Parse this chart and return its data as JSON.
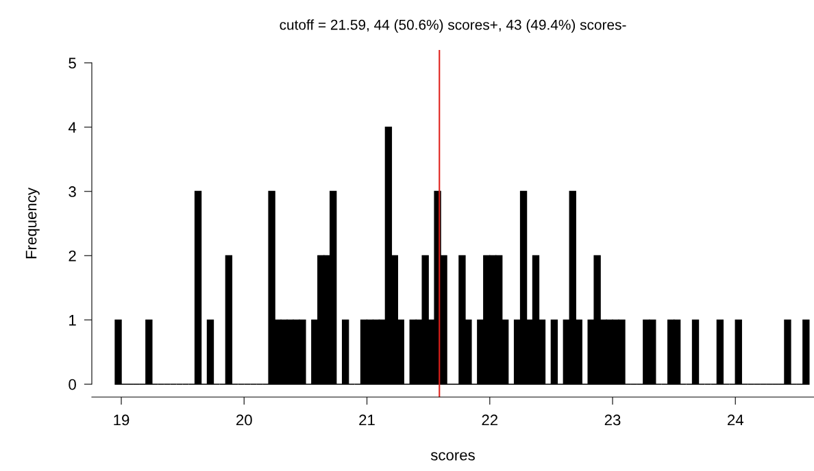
{
  "chart_data": {
    "type": "histogram",
    "title": "cutoff = 21.59, 44 (50.6%) scores+, 43 (49.4%) scores-",
    "xlabel": "scores",
    "ylabel": "Frequency",
    "bins": [
      18.95,
      19.0,
      19.05,
      19.1,
      19.15,
      19.2,
      19.25,
      19.3,
      19.35,
      19.4,
      19.45,
      19.5,
      19.55,
      19.6,
      19.65,
      19.7,
      19.75,
      19.8,
      19.85,
      19.9,
      19.95,
      20.0,
      20.05,
      20.1,
      20.15,
      20.2,
      20.25,
      20.3,
      20.35,
      20.4,
      20.45,
      20.5,
      20.55,
      20.6,
      20.65,
      20.7,
      20.75,
      20.8,
      20.85,
      20.9,
      20.95,
      21.0,
      21.05,
      21.1,
      21.15,
      21.2,
      21.25,
      21.3,
      21.35,
      21.4,
      21.45,
      21.5,
      21.55,
      21.6,
      21.65,
      21.7,
      21.75,
      21.8,
      21.85,
      21.9,
      21.95,
      22.0,
      22.05,
      22.1,
      22.15,
      22.2,
      22.25,
      22.3,
      22.35,
      22.4,
      22.45,
      22.5,
      22.55,
      22.6,
      22.65,
      22.7,
      22.75,
      22.8,
      22.85,
      22.9,
      22.95,
      23.0,
      23.05,
      23.1,
      23.15,
      23.2,
      23.25,
      23.3,
      23.35,
      23.4,
      23.45,
      23.5,
      23.55,
      23.6,
      23.65,
      23.7,
      23.75,
      23.8,
      23.85,
      23.9,
      23.95,
      24.0,
      24.05,
      24.1,
      24.15,
      24.2,
      24.25,
      24.3,
      24.35,
      24.4,
      24.45,
      24.5,
      24.55,
      24.6
    ],
    "values": [
      1,
      0,
      0,
      0,
      0,
      1,
      0,
      0,
      0,
      0,
      0,
      0,
      0,
      3,
      0,
      1,
      0,
      0,
      2,
      0,
      0,
      0,
      0,
      0,
      0,
      3,
      1,
      1,
      1,
      1,
      1,
      0,
      1,
      2,
      2,
      3,
      0,
      1,
      0,
      0,
      1,
      1,
      1,
      1,
      4,
      2,
      1,
      0,
      1,
      1,
      2,
      1,
      3,
      2,
      0,
      0,
      2,
      1,
      0,
      1,
      2,
      2,
      2,
      1,
      0,
      1,
      3,
      1,
      2,
      1,
      0,
      1,
      0,
      1,
      3,
      1,
      0,
      1,
      2,
      1,
      1,
      1,
      1,
      0,
      0,
      0,
      1,
      1,
      0,
      0,
      1,
      1,
      0,
      0,
      1,
      0,
      0,
      0,
      1,
      0,
      0,
      1,
      0,
      0,
      0,
      0,
      0,
      0,
      0,
      1,
      0,
      0,
      1
    ],
    "color": "#000000",
    "xlim": [
      18.76,
      24.64
    ],
    "ylim": [
      -0.2,
      5.2
    ],
    "xticks": [
      19,
      20,
      21,
      22,
      23,
      24
    ],
    "yticks": [
      0,
      1,
      2,
      3,
      4,
      5
    ],
    "ref_lines": [
      {
        "axis": "x",
        "value": 21.59,
        "color": "#e0201b"
      }
    ],
    "grid": false
  }
}
